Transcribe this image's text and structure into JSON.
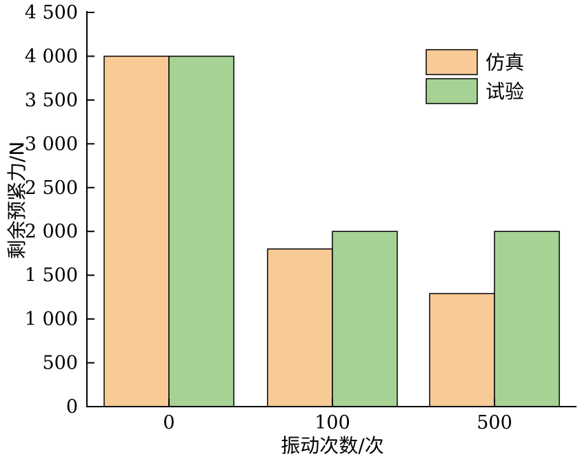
{
  "chart_data": {
    "type": "bar",
    "categories": [
      "0",
      "100",
      "500"
    ],
    "series": [
      {
        "name": "仿真",
        "color": "#f8ca96",
        "values": [
          4000,
          1800,
          1290
        ]
      },
      {
        "name": "试验",
        "color": "#a6d394",
        "values": [
          4000,
          2000,
          2000
        ]
      }
    ],
    "xlabel": "振动次数/次",
    "ylabel": "剩余预紧力/N",
    "ylim": [
      0,
      4500
    ],
    "yticks": [
      0,
      500,
      1000,
      1500,
      2000,
      2500,
      3000,
      3500,
      4000,
      4500
    ],
    "ytick_labels": [
      "0",
      "500",
      "1 000",
      "1 500",
      "2 000",
      "2 500",
      "3 000",
      "3 500",
      "4 000",
      "4 500"
    ],
    "grid": false,
    "legend_position": "top-right"
  }
}
